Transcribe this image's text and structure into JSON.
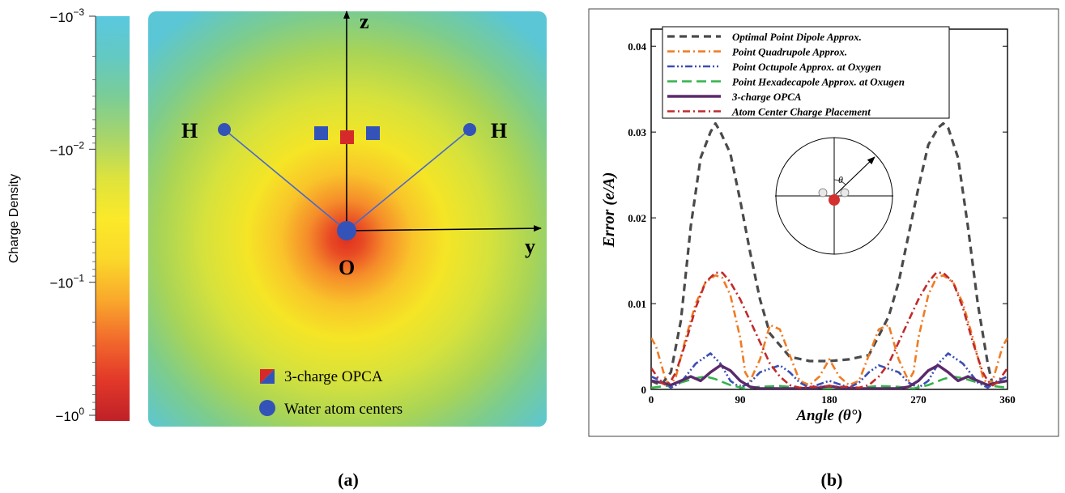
{
  "panel_a": {
    "caption": "(a)",
    "colorbar": {
      "label": "Charge Density",
      "ticks": [
        {
          "base": "−10",
          "exp": "−3",
          "log": -3
        },
        {
          "base": "−10",
          "exp": "−2",
          "log": -2
        },
        {
          "base": "−10",
          "exp": "−1",
          "log": -1
        },
        {
          "base": "−10",
          "exp": "0",
          "log": 0
        }
      ],
      "colors_top_to_bottom": [
        "#5ac8e0",
        "#63c9c2",
        "#7bcd96",
        "#a8d56a",
        "#dde33d",
        "#fbe92a",
        "#fbd82a",
        "#f9a92c",
        "#f26a2c",
        "#e23829",
        "#bf2127"
      ]
    },
    "atoms": [
      {
        "label": "H",
        "role": "hydrogen-left"
      },
      {
        "label": "H",
        "role": "hydrogen-right"
      },
      {
        "label": "O",
        "role": "oxygen"
      }
    ],
    "axes": {
      "z": "z",
      "y": "y"
    },
    "legend": [
      {
        "label": "3-charge OPCA",
        "marker": "split-square"
      },
      {
        "label": "Water atom centers",
        "marker": "circle"
      }
    ],
    "colors": {
      "atom": "#3353b8",
      "charge": "#d62a2a",
      "bond": "#4a69c9",
      "axis": "#000000"
    }
  },
  "panel_b": {
    "caption": "(b)",
    "inset_theta_label": "θ",
    "chart_data": {
      "type": "line",
      "xlabel": "Angle (θ°)",
      "ylabel": "Error (e/A)",
      "xlim": [
        0,
        360
      ],
      "ylim": [
        0,
        0.042
      ],
      "xticks": [
        0,
        90,
        180,
        270,
        360
      ],
      "yticks": [
        0,
        0.01,
        0.02,
        0.03,
        0.04
      ],
      "ytick_labels": [
        "0",
        "0.01",
        "0.02",
        "0.03",
        "0.04"
      ],
      "legend_position": "top-left",
      "series": [
        {
          "name": "Optimal Point Dipole Approx.",
          "color": "#4a4a4a",
          "dash": "dash",
          "x": [
            0,
            10,
            20,
            30,
            40,
            50,
            60,
            65,
            70,
            80,
            90,
            100,
            110,
            120,
            140,
            160,
            180,
            200,
            220,
            240,
            250,
            260,
            270,
            280,
            290,
            295,
            300,
            310,
            320,
            330,
            340,
            345,
            350,
            360
          ],
          "values": [
            0.001,
            0.0005,
            0.002,
            0.008,
            0.019,
            0.027,
            0.03,
            0.031,
            0.03,
            0.0275,
            0.022,
            0.016,
            0.0105,
            0.0065,
            0.0038,
            0.0033,
            0.0033,
            0.0035,
            0.004,
            0.0085,
            0.0125,
            0.018,
            0.0235,
            0.0285,
            0.0305,
            0.031,
            0.0305,
            0.027,
            0.019,
            0.01,
            0.003,
            0.0005,
            0.0008,
            0.001
          ]
        },
        {
          "name": "Point Quadrupole Approx.",
          "color": "#ef7c24",
          "dash": "dashdot",
          "x": [
            0,
            5,
            15,
            20,
            25,
            35,
            45,
            55,
            65,
            72,
            80,
            90,
            95,
            100,
            110,
            120,
            130,
            140,
            150,
            160,
            170,
            180,
            190,
            200,
            210,
            220,
            230,
            240,
            250,
            260,
            265,
            270,
            280,
            288,
            295,
            305,
            315,
            325,
            335,
            340,
            345,
            355,
            360
          ],
          "values": [
            0.006,
            0.005,
            0.001,
            0.0005,
            0.0015,
            0.006,
            0.01,
            0.0125,
            0.0133,
            0.013,
            0.011,
            0.006,
            0.002,
            0.001,
            0.0035,
            0.0075,
            0.007,
            0.004,
            0.001,
            0.0005,
            0.0015,
            0.0035,
            0.0015,
            0.0005,
            0.001,
            0.004,
            0.007,
            0.0075,
            0.0035,
            0.001,
            0.002,
            0.006,
            0.011,
            0.013,
            0.0133,
            0.0125,
            0.01,
            0.006,
            0.0015,
            0.0005,
            0.001,
            0.005,
            0.006
          ]
        },
        {
          "name": "Point Octupole Approx. at Oxygen",
          "color": "#3a4fb3",
          "dash": "dashdotdot",
          "x": [
            0,
            10,
            20,
            30,
            45,
            60,
            70,
            80,
            90,
            100,
            110,
            130,
            140,
            150,
            160,
            170,
            180,
            190,
            200,
            210,
            220,
            230,
            250,
            260,
            270,
            280,
            290,
            300,
            315,
            330,
            340,
            350,
            360
          ],
          "values": [
            0.0015,
            0.001,
            0.0002,
            0.0008,
            0.003,
            0.0042,
            0.003,
            0.001,
            0.0002,
            0.0008,
            0.002,
            0.0028,
            0.002,
            0.0008,
            0.0002,
            0.0006,
            0.001,
            0.0006,
            0.0002,
            0.0008,
            0.002,
            0.0028,
            0.002,
            0.0008,
            0.0002,
            0.001,
            0.003,
            0.0042,
            0.003,
            0.0008,
            0.0002,
            0.001,
            0.0015
          ]
        },
        {
          "name": "Point Hexadecapole Approx. at Oxugen",
          "color": "#34b34a",
          "dash": "longdash",
          "x": [
            0,
            15,
            30,
            45,
            55,
            65,
            80,
            95,
            110,
            130,
            150,
            180,
            210,
            230,
            250,
            265,
            280,
            295,
            305,
            315,
            330,
            345,
            360
          ],
          "values": [
            0.0002,
            0.0004,
            0.0008,
            0.0013,
            0.0015,
            0.0012,
            0.0005,
            0.0001,
            0.0003,
            0.0004,
            0.0002,
            0.0001,
            0.0002,
            0.0004,
            0.0003,
            0.0001,
            0.0005,
            0.0012,
            0.0015,
            0.0013,
            0.0008,
            0.0004,
            0.0002
          ]
        },
        {
          "name": "3-charge OPCA",
          "color": "#5a2a6b",
          "dash": "solid",
          "x": [
            0,
            10,
            20,
            30,
            40,
            50,
            60,
            70,
            80,
            90,
            100,
            110,
            130,
            150,
            170,
            180,
            190,
            210,
            230,
            250,
            260,
            270,
            280,
            290,
            300,
            310,
            320,
            330,
            340,
            350,
            360
          ],
          "values": [
            0.001,
            0.0008,
            0.0005,
            0.001,
            0.0015,
            0.001,
            0.002,
            0.0028,
            0.0022,
            0.001,
            0.0003,
            0.0001,
            0.0001,
            0.0001,
            0.0002,
            0.0004,
            0.0002,
            0.0001,
            0.0001,
            0.0001,
            0.0003,
            0.001,
            0.0022,
            0.0028,
            0.002,
            0.001,
            0.0015,
            0.001,
            0.0005,
            0.0008,
            0.001
          ]
        },
        {
          "name": "Atom Center Charge Placement",
          "color": "#c12a2a",
          "dash": "dashdot",
          "x": [
            0,
            10,
            15,
            20,
            25,
            35,
            45,
            55,
            65,
            72,
            80,
            90,
            100,
            110,
            120,
            130,
            140,
            150,
            160,
            170,
            180,
            190,
            200,
            210,
            220,
            230,
            240,
            250,
            260,
            270,
            280,
            288,
            295,
            305,
            315,
            325,
            335,
            340,
            345,
            350,
            360
          ],
          "values": [
            0.0025,
            0.0008,
            0.0005,
            0.001,
            0.002,
            0.0055,
            0.0095,
            0.0125,
            0.0136,
            0.0136,
            0.0125,
            0.0105,
            0.008,
            0.0055,
            0.003,
            0.0015,
            0.0005,
            0.0002,
            0.0003,
            0.0003,
            0.0004,
            0.0003,
            0.0003,
            0.0002,
            0.0005,
            0.0015,
            0.003,
            0.0055,
            0.008,
            0.0105,
            0.0125,
            0.0136,
            0.0136,
            0.0125,
            0.0095,
            0.0055,
            0.002,
            0.001,
            0.0005,
            0.0008,
            0.0025
          ]
        }
      ]
    }
  }
}
